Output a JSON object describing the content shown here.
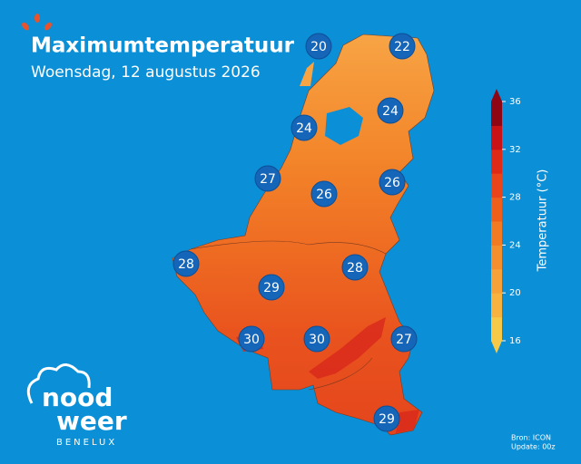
{
  "header": {
    "title": "Maximumtemperatuur",
    "subtitle": "Woensdag, 12 augustus 2026"
  },
  "markers": [
    {
      "value": "20"
    },
    {
      "value": "22"
    },
    {
      "value": "24"
    },
    {
      "value": "24"
    },
    {
      "value": "27"
    },
    {
      "value": "26"
    },
    {
      "value": "26"
    },
    {
      "value": "28"
    },
    {
      "value": "28"
    },
    {
      "value": "29"
    },
    {
      "value": "30"
    },
    {
      "value": "30"
    },
    {
      "value": "27"
    },
    {
      "value": "29"
    }
  ],
  "colorbar": {
    "label": "Temperatuur (°C)",
    "range": [
      16,
      36
    ],
    "ticks": [
      16,
      20,
      24,
      28,
      32,
      36
    ],
    "colors": [
      "#f7c948",
      "#f7b240",
      "#f7a13a",
      "#f58f2e",
      "#f27a22",
      "#ee5f1c",
      "#ea451a",
      "#e02a18",
      "#c81216",
      "#8e0614"
    ]
  },
  "logo": {
    "line1": "nood",
    "line2": "weer",
    "tagline": "BENELUX"
  },
  "footer": {
    "source": "Bron: ICON",
    "update": "Update: 00z"
  }
}
